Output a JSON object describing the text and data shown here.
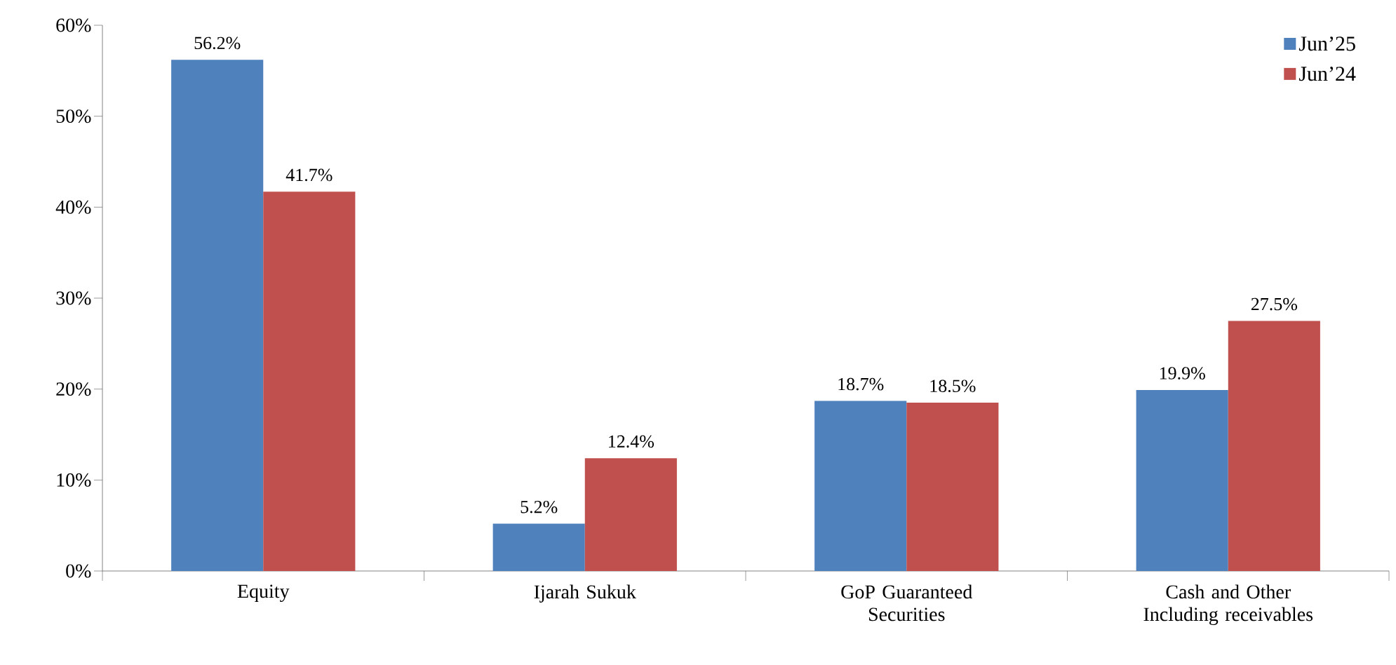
{
  "chart_data": {
    "type": "bar",
    "categories": [
      "Equity",
      "Ijarah Sukuk",
      "GoP Guaranteed Securities",
      "Cash and Other Including receivables"
    ],
    "series": [
      {
        "name": "Jun’25",
        "color": "#4f81bd",
        "values": [
          56.2,
          5.2,
          18.7,
          19.9
        ],
        "value_labels": [
          "56.2%",
          "5.2%",
          "18.7%",
          "19.9%"
        ]
      },
      {
        "name": "Jun’24",
        "color": "#c0504d",
        "values": [
          41.7,
          12.4,
          18.5,
          27.5
        ],
        "value_labels": [
          "41.7%",
          "12.4%",
          "18.5%",
          "27.5%"
        ]
      }
    ],
    "ylim": [
      0,
      60
    ],
    "yticks": [
      {
        "value": 0,
        "label": "0%"
      },
      {
        "value": 10,
        "label": "10%"
      },
      {
        "value": 20,
        "label": "20%"
      },
      {
        "value": 30,
        "label": "30%"
      },
      {
        "value": 40,
        "label": "40%"
      },
      {
        "value": 50,
        "label": "50%"
      },
      {
        "value": 60,
        "label": "60%"
      }
    ],
    "legend": "top right",
    "grid": false
  }
}
